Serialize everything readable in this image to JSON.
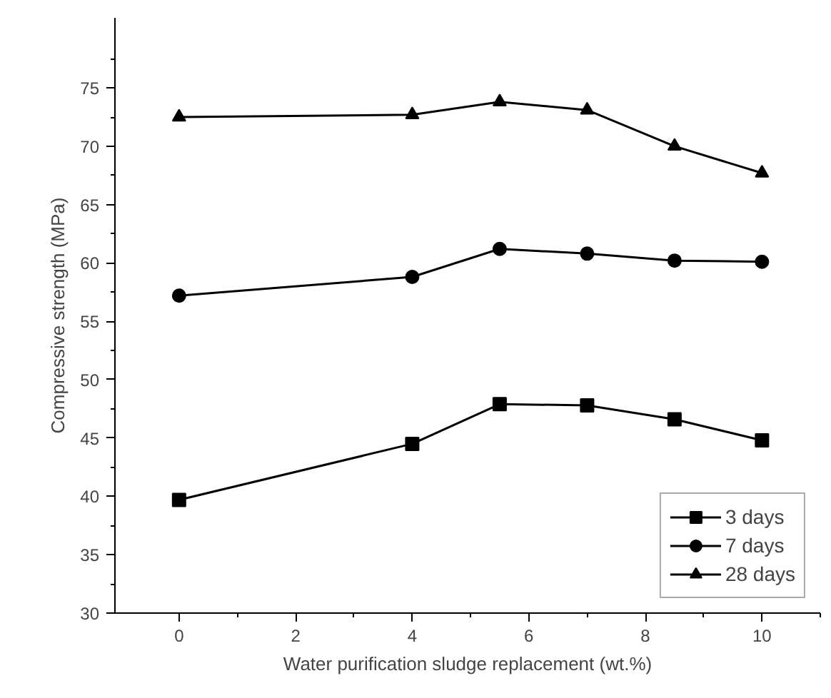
{
  "chart_data": {
    "type": "line",
    "xlabel": "Water purification sludge replacement (wt.%)",
    "ylabel": "Compressive strength (MPa)",
    "x": [
      0,
      4,
      5.5,
      7,
      8.5,
      10
    ],
    "series": [
      {
        "name": "3 days",
        "color": "#000000",
        "marker": "square",
        "values": [
          39.7,
          44.5,
          47.9,
          47.8,
          46.6,
          44.8
        ]
      },
      {
        "name": "7 days",
        "color": "#000000",
        "marker": "circle",
        "values": [
          57.2,
          58.8,
          61.2,
          60.8,
          60.2,
          60.1
        ]
      },
      {
        "name": "28 days",
        "color": "#000000",
        "marker": "triangle",
        "values": [
          72.5,
          72.7,
          73.8,
          73.1,
          70.0,
          67.7
        ]
      }
    ],
    "xlim": [
      -1.1,
      11
    ],
    "ylim": [
      30,
      81
    ],
    "xticks": [
      0,
      2,
      4,
      6,
      8,
      10
    ],
    "yticks": [
      30,
      35,
      40,
      45,
      50,
      55,
      60,
      65,
      70,
      75
    ],
    "grid": false,
    "legend": "bottom right",
    "line_style": "solid"
  }
}
